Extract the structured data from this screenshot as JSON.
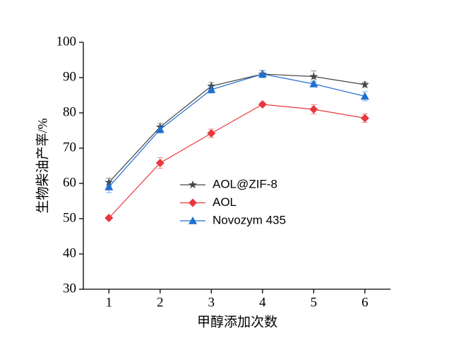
{
  "chart_data": {
    "type": "line",
    "x_label": "甲醇添加次数",
    "y_label": "生物柴油产率/%",
    "x": [
      1,
      2,
      3,
      4,
      5,
      6
    ],
    "xlim": [
      0.5,
      6.5
    ],
    "xticks": [
      1,
      2,
      3,
      4,
      5,
      6
    ],
    "ylim": [
      30,
      100
    ],
    "yticks": [
      30,
      40,
      50,
      60,
      70,
      80,
      90,
      100
    ],
    "grid": false,
    "legend": "center",
    "series": [
      {
        "name": "AOL@ZIF-8",
        "color": "#444444",
        "marker": "star",
        "values": [
          60.3,
          76.0,
          87.6,
          91.0,
          90.3,
          88.0
        ],
        "errors": [
          1.2,
          1.0,
          1.0,
          1.0,
          1.6,
          0.7
        ]
      },
      {
        "name": "AOL",
        "color": "#e8383d",
        "marker": "diamond",
        "values": [
          50.2,
          65.8,
          74.2,
          82.4,
          81.0,
          78.5
        ],
        "errors": [
          0.4,
          1.5,
          1.2,
          0.5,
          1.3,
          1.2
        ]
      },
      {
        "name": "Novozym 435",
        "color": "#1f6fd1",
        "marker": "triangle",
        "values": [
          59.0,
          75.3,
          86.6,
          91.0,
          88.2,
          84.7
        ],
        "errors": [
          1.6,
          1.0,
          1.0,
          1.0,
          0.8,
          1.3
        ]
      }
    ]
  }
}
